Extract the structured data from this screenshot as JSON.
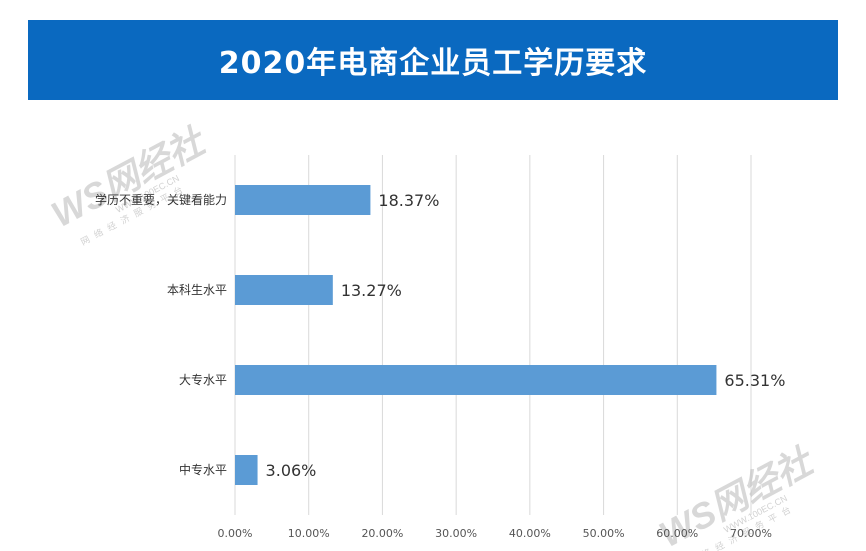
{
  "banner": {
    "title": "2020年电商企业员工学历要求"
  },
  "watermark": {
    "logo": "WS网经社",
    "url": "WWW.100EC.CN",
    "tagline": "网络经济服务平台"
  },
  "colors": {
    "banner": "#0a69c0",
    "bar": "#5b9bd5",
    "grid": "#d9d9d9"
  },
  "chart_data": {
    "type": "bar",
    "orientation": "horizontal",
    "title": "",
    "xlabel": "",
    "ylabel": "",
    "categories": [
      "学历不重要，关键看能力",
      "本科生水平",
      "大专水平",
      "中专水平"
    ],
    "values": [
      18.37,
      13.27,
      65.31,
      3.06
    ],
    "value_labels": [
      "18.37%",
      "13.27%",
      "65.31%",
      "3.06%"
    ],
    "xlim": [
      0,
      70
    ],
    "ticks": [
      0,
      10,
      20,
      30,
      40,
      50,
      60,
      70
    ],
    "tick_labels": [
      "0.00%",
      "10.00%",
      "20.00%",
      "30.00%",
      "40.00%",
      "50.00%",
      "60.00%",
      "70.00%"
    ],
    "grid": true,
    "legend": "none"
  }
}
